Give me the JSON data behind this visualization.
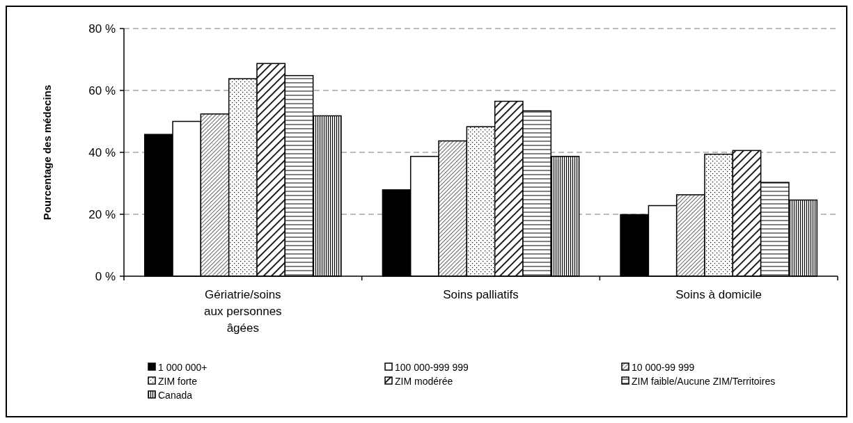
{
  "chart_data": {
    "type": "bar",
    "ylabel": "Pourcentage des médecins",
    "categories": [
      "Gériatrie/soins aux personnes âgées",
      "Soins palliatifs",
      "Soins à domicile"
    ],
    "series": [
      {
        "name": "1 000 000+",
        "color": "#000000",
        "values": [
          45.8,
          27.9,
          19.9
        ]
      },
      {
        "name": "100 000-999 999",
        "color": "#ffffff",
        "values": [
          50.0,
          38.7,
          22.8
        ]
      },
      {
        "name": "10 000-99 999",
        "color": "#000000",
        "values": [
          52.4,
          43.7,
          26.3
        ]
      },
      {
        "name": "ZIM forte",
        "color": "#000000",
        "values": [
          63.8,
          48.3,
          39.4
        ]
      },
      {
        "name": "ZIM modérée",
        "color": "#000000",
        "values": [
          68.7,
          56.5,
          40.6
        ]
      },
      {
        "name": "ZIM faible/Aucune ZIM/Territoires",
        "color": "#000000",
        "values": [
          64.8,
          53.4,
          30.3
        ]
      },
      {
        "name": "Canada",
        "color": "#000000",
        "values": [
          51.8,
          38.7,
          24.6
        ]
      }
    ],
    "ylim": [
      0,
      80
    ],
    "yticks": [
      {
        "value": 0,
        "label": "0 %"
      },
      {
        "value": 20,
        "label": "20 %"
      },
      {
        "value": 40,
        "label": "40 %"
      },
      {
        "value": 60,
        "label": "60 %"
      },
      {
        "value": 80,
        "label": "80 %"
      }
    ],
    "grid": "y",
    "legend": "bottom"
  }
}
